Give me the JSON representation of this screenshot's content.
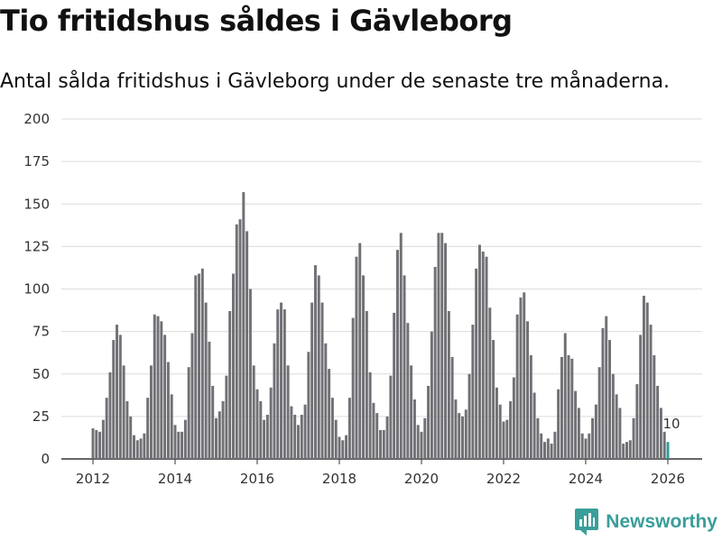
{
  "chart_data": {
    "type": "bar",
    "title": "Tio fritidshus såldes i Gävleborg",
    "subtitle": "Antal sålda fritidshus i Gävleborg under de senaste tre månaderna.",
    "ylim": [
      0,
      200
    ],
    "yticks": [
      0,
      25,
      50,
      75,
      100,
      125,
      150,
      175,
      200
    ],
    "xtick_labels": [
      "2012",
      "2014",
      "2016",
      "2018",
      "2020",
      "2022",
      "2024",
      "2026"
    ],
    "xtick_years": [
      2012,
      2014,
      2016,
      2018,
      2020,
      2022,
      2024,
      2026
    ],
    "start": {
      "year": 2012,
      "month": 1
    },
    "bar_color": "#717075",
    "highlight_color": "#2e9e96",
    "highlight_label": "10",
    "values": [
      18,
      17,
      16,
      23,
      36,
      51,
      70,
      79,
      73,
      55,
      34,
      25,
      14,
      11,
      12,
      15,
      36,
      55,
      85,
      84,
      81,
      73,
      57,
      38,
      20,
      16,
      16,
      23,
      54,
      74,
      108,
      109,
      112,
      92,
      69,
      43,
      24,
      28,
      34,
      49,
      87,
      109,
      138,
      141,
      157,
      134,
      100,
      55,
      41,
      34,
      23,
      26,
      42,
      68,
      88,
      92,
      88,
      55,
      31,
      26,
      20,
      26,
      32,
      63,
      92,
      114,
      108,
      92,
      68,
      53,
      36,
      23,
      13,
      11,
      14,
      36,
      83,
      119,
      127,
      108,
      87,
      51,
      33,
      27,
      17,
      17,
      25,
      49,
      86,
      123,
      133,
      108,
      80,
      55,
      35,
      20,
      16,
      24,
      43,
      75,
      113,
      133,
      133,
      127,
      87,
      60,
      35,
      27,
      25,
      29,
      50,
      79,
      112,
      126,
      122,
      119,
      89,
      70,
      42,
      32,
      22,
      23,
      34,
      48,
      85,
      95,
      98,
      81,
      61,
      39,
      24,
      15,
      10,
      12,
      9,
      16,
      41,
      60,
      74,
      61,
      59,
      40,
      30,
      15,
      12,
      15,
      24,
      32,
      54,
      77,
      84,
      70,
      50,
      38,
      30,
      9,
      10,
      11,
      24,
      44,
      73,
      96,
      92,
      79,
      61,
      43,
      30,
      16,
      10
    ]
  },
  "branding": {
    "name": "Newsworthy"
  }
}
